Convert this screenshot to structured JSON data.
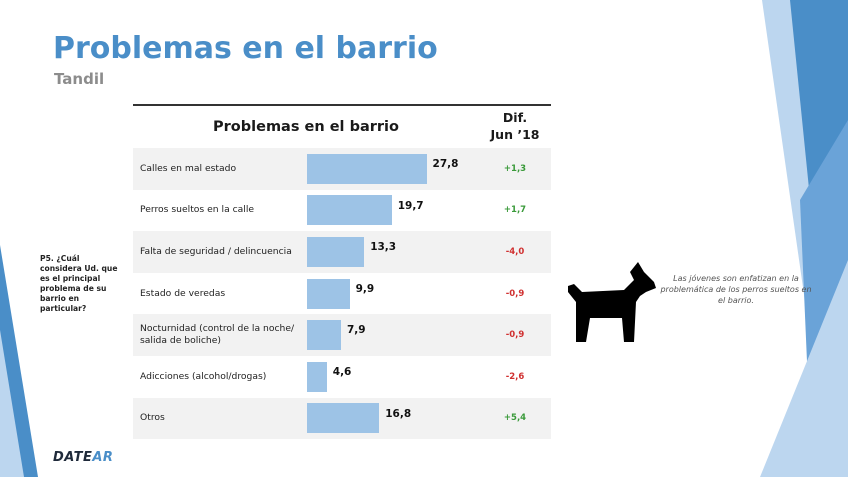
{
  "slide": {
    "title": "Problemas en el barrio",
    "subtitle": "Tandil",
    "question": "P5. ¿Cuál considera Ud. que es el principal problema de su barrio en particular?",
    "note": "Las jóvenes son enfatizan en la problemática de los perros sueltos en el barrio.",
    "logo": {
      "part1": "DATE",
      "part2": "AR"
    },
    "colors": {
      "accent": "#4a8ec8",
      "bar": "#9dc3e6",
      "positive": "#3a9a3a",
      "negative": "#d03030"
    },
    "icon": "dog-icon"
  },
  "chart_data": {
    "type": "bar",
    "orientation": "horizontal",
    "title": "Problemas en el barrio",
    "dif_header": [
      "Dif.",
      "Jun ’18"
    ],
    "categories": [
      [
        "Calles en mal estado"
      ],
      [
        "Perros sueltos en la calle"
      ],
      [
        "Falta de seguridad / delincuencia"
      ],
      [
        "Estado de veredas"
      ],
      [
        "Nocturnidad (control de la noche/",
        "salida de boliche)"
      ],
      [
        "Adicciones (alcohol/drogas)"
      ],
      [
        "Otros"
      ]
    ],
    "values": [
      27.8,
      19.7,
      13.3,
      9.9,
      7.9,
      4.6,
      16.8
    ],
    "value_labels": [
      "27,8",
      "19,7",
      "13,3",
      "9,9",
      "7,9",
      "4,6",
      "16,8"
    ],
    "dif": [
      1.3,
      1.7,
      -4.0,
      -0.9,
      -0.9,
      -2.6,
      5.4
    ],
    "dif_labels": [
      "+1,3",
      "+1,7",
      "-4,0",
      "-0,9",
      "-0,9",
      "-2,6",
      "+5,4"
    ],
    "xlim": [
      0,
      40
    ]
  }
}
